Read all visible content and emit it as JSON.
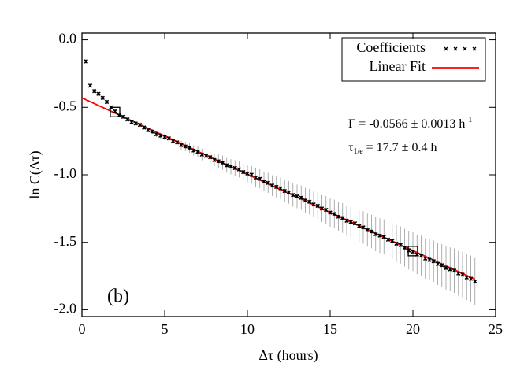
{
  "chart_data": {
    "type": "scatter",
    "xlabel": "Δτ (hours)",
    "ylabel": "ln C(Δτ)",
    "panel_label": "(b)",
    "xlim": [
      0,
      25
    ],
    "ylim": [
      -2.05,
      0.05
    ],
    "xticks": [
      0,
      5,
      10,
      15,
      20,
      25
    ],
    "yticks": [
      {
        "value": 0,
        "label": "0.0"
      },
      -0.5,
      {
        "value": -1,
        "label": "-1.0"
      },
      -1.5,
      {
        "value": -2,
        "label": "-2.0"
      }
    ],
    "x": [
      0.25,
      0.5,
      0.75,
      1,
      1.25,
      1.5,
      1.75,
      2,
      2.25,
      2.5,
      2.75,
      3,
      3.25,
      3.5,
      3.75,
      4,
      4.25,
      4.5,
      4.75,
      5,
      5.25,
      5.5,
      5.75,
      6,
      6.25,
      6.5,
      6.75,
      7,
      7.25,
      7.5,
      7.75,
      8,
      8.25,
      8.5,
      8.75,
      9,
      9.25,
      9.5,
      9.75,
      10,
      10.25,
      10.5,
      10.75,
      11,
      11.25,
      11.5,
      11.75,
      12,
      12.25,
      12.5,
      12.75,
      13,
      13.25,
      13.5,
      13.75,
      14,
      14.25,
      14.5,
      14.75,
      15,
      15.25,
      15.5,
      15.75,
      16,
      16.25,
      16.5,
      16.75,
      17,
      17.25,
      17.5,
      17.75,
      18,
      18.25,
      18.5,
      18.75,
      19,
      19.25,
      19.5,
      19.75,
      20,
      20.25,
      20.5,
      20.75,
      21,
      21.25,
      21.5,
      21.75,
      22,
      22.25,
      22.5,
      22.75,
      23,
      23.25,
      23.5,
      23.75
    ],
    "series": [
      {
        "name": "Coefficients",
        "color": "#000000",
        "values": [
          -0.16,
          -0.34,
          -0.38,
          -0.4,
          -0.43,
          -0.46,
          -0.5,
          -0.53,
          -0.56,
          -0.57,
          -0.59,
          -0.61,
          -0.62,
          -0.63,
          -0.65,
          -0.67,
          -0.68,
          -0.7,
          -0.71,
          -0.72,
          -0.73,
          -0.75,
          -0.76,
          -0.78,
          -0.79,
          -0.8,
          -0.82,
          -0.83,
          -0.85,
          -0.86,
          -0.87,
          -0.89,
          -0.9,
          -0.91,
          -0.93,
          -0.94,
          -0.95,
          -0.96,
          -0.98,
          -0.99,
          -1.0,
          -1.02,
          -1.03,
          -1.05,
          -1.06,
          -1.08,
          -1.09,
          -1.1,
          -1.12,
          -1.13,
          -1.15,
          -1.16,
          -1.17,
          -1.19,
          -1.2,
          -1.22,
          -1.23,
          -1.25,
          -1.26,
          -1.28,
          -1.29,
          -1.31,
          -1.32,
          -1.34,
          -1.35,
          -1.36,
          -1.38,
          -1.39,
          -1.41,
          -1.42,
          -1.44,
          -1.45,
          -1.46,
          -1.48,
          -1.49,
          -1.51,
          -1.52,
          -1.54,
          -1.56,
          -1.57,
          -1.59,
          -1.6,
          -1.62,
          -1.63,
          -1.64,
          -1.66,
          -1.67,
          -1.69,
          -1.7,
          -1.71,
          -1.73,
          -1.74,
          -1.76,
          -1.77,
          -1.79
        ],
        "errors": [
          0,
          0,
          0,
          0,
          0,
          0,
          0,
          0,
          0.002,
          0.004,
          0.006,
          0.008,
          0.01,
          0.012,
          0.014,
          0.016,
          0.018,
          0.02,
          0.022,
          0.024,
          0.026,
          0.028,
          0.03,
          0.032,
          0.034,
          0.036,
          0.038,
          0.04,
          0.042,
          0.044,
          0.046,
          0.048,
          0.05,
          0.052,
          0.054,
          0.056,
          0.058,
          0.06,
          0.062,
          0.064,
          0.066,
          0.068,
          0.07,
          0.072,
          0.074,
          0.076,
          0.078,
          0.08,
          0.082,
          0.084,
          0.086,
          0.088,
          0.09,
          0.092,
          0.094,
          0.096,
          0.098,
          0.1,
          0.102,
          0.104,
          0.106,
          0.108,
          0.11,
          0.112,
          0.114,
          0.116,
          0.118,
          0.12,
          0.122,
          0.124,
          0.126,
          0.128,
          0.13,
          0.132,
          0.134,
          0.136,
          0.138,
          0.14,
          0.142,
          0.144,
          0.146,
          0.148,
          0.15,
          0.152,
          0.154,
          0.156,
          0.158,
          0.16,
          0.162,
          0.164,
          0.166,
          0.168,
          0.17,
          0.172,
          0.174
        ]
      }
    ],
    "fit": {
      "name": "Linear Fit",
      "color": "#ff0000",
      "x": [
        0,
        23.75
      ],
      "y": [
        -0.43,
        -1.774
      ]
    },
    "fit_range": {
      "x": [
        2,
        20
      ],
      "y": [
        -0.535,
        -1.565
      ]
    },
    "annotations": [
      [
        "Γ = -0.0566 ± 0.0013 h",
        "-1"
      ],
      [
        "τ",
        "1/e",
        " = 17.7 ± 0.4 h"
      ]
    ]
  }
}
